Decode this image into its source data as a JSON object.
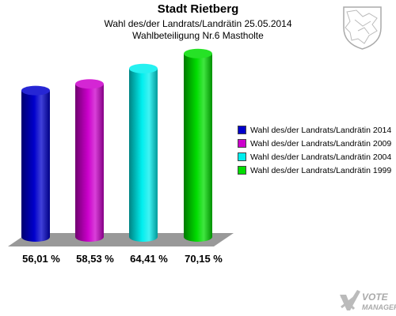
{
  "header": {
    "title": "Stadt Rietberg",
    "subtitle": "Wahl des/der Landrats/Landrätin 25.05.2014",
    "subtitle2": "Wahlbeteiligung Nr.6 Mastholte"
  },
  "crest": {
    "icon": "coat-of-arms-icon"
  },
  "watermark": {
    "line1": "VOTE",
    "line2": "MANAGER",
    "icon": "vote-manager-logo-icon"
  },
  "colors": {
    "floor": "#999999"
  },
  "chart_data": {
    "type": "bar",
    "style": "3d-cylinder",
    "categories": [
      "Wahl des/der Landrats/Landrätin 2014",
      "Wahl des/der Landrats/Landrätin 2009",
      "Wahl des/der Landrats/Landrätin 2004",
      "Wahl des/der Landrats/Landrätin 1999"
    ],
    "values": [
      56.01,
      58.53,
      64.41,
      70.15
    ],
    "value_labels": [
      "56,01 %",
      "58,53 %",
      "64,41 %",
      "70,15 %"
    ],
    "colors": [
      "#0000cc",
      "#cc00cc",
      "#00eeee",
      "#00dd00"
    ],
    "legend_position": "right",
    "grid": false
  }
}
